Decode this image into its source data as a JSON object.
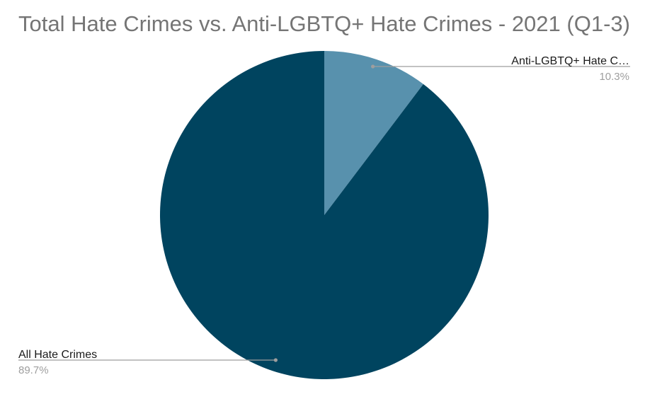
{
  "chart_data": {
    "type": "pie",
    "title": "Total Hate Crimes vs. Anti-LGBTQ+ Hate Crimes - 2021 (Q1-3)",
    "slices": [
      {
        "label": "Anti-LGBTQ+ Hate C…",
        "value": 10.3,
        "percent_label": "10.3%",
        "color": "#5891AD"
      },
      {
        "label": "All Hate Crimes",
        "value": 89.7,
        "percent_label": "89.7%",
        "color": "#00445F"
      }
    ],
    "start_angle_deg": 0,
    "direction": "clockwise",
    "label_color": "#1a1a1a",
    "percent_color": "#9e9e9e",
    "leader_color": "#9e9e9e",
    "title_color": "#757575"
  }
}
